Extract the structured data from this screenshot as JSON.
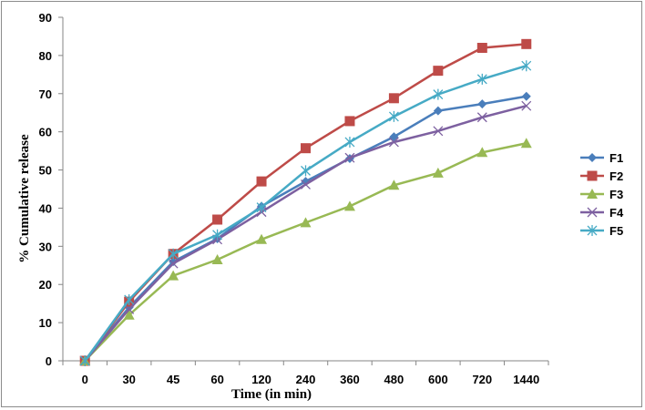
{
  "chart_data": {
    "type": "line",
    "title": "",
    "xlabel": "Time (in min)",
    "ylabel": "% Cumulative release",
    "categories": [
      "0",
      "30",
      "45",
      "60",
      "120",
      "240",
      "360",
      "480",
      "600",
      "720",
      "1440"
    ],
    "ylim": [
      0,
      90
    ],
    "yticks": [
      0,
      10,
      20,
      30,
      40,
      50,
      60,
      70,
      80,
      90
    ],
    "grid": false,
    "legend": "right",
    "series": [
      {
        "name": "F1",
        "color": "#4a7ebb",
        "marker": "diamond",
        "values": [
          0,
          14,
          26,
          32,
          40.5,
          47,
          53,
          58.7,
          65.5,
          67.3,
          69.3
        ]
      },
      {
        "name": "F2",
        "color": "#be4b48",
        "marker": "square",
        "values": [
          0,
          15.5,
          28,
          37,
          47,
          55.7,
          62.8,
          68.8,
          76,
          82,
          83
        ]
      },
      {
        "name": "F3",
        "color": "#98b954",
        "marker": "triangle",
        "values": [
          0,
          12,
          22.3,
          26.5,
          31.8,
          36.2,
          40.5,
          46,
          49.2,
          54.6,
          57
        ]
      },
      {
        "name": "F4",
        "color": "#7d60a0",
        "marker": "x",
        "values": [
          0,
          13.5,
          25.5,
          31.8,
          39,
          46.2,
          53.2,
          57.3,
          60.2,
          63.8,
          66.8
        ]
      },
      {
        "name": "F5",
        "color": "#46aac5",
        "marker": "star",
        "values": [
          0,
          16,
          28,
          33,
          40.2,
          49.8,
          57.3,
          64,
          69.8,
          73.8,
          77.3
        ]
      }
    ]
  }
}
